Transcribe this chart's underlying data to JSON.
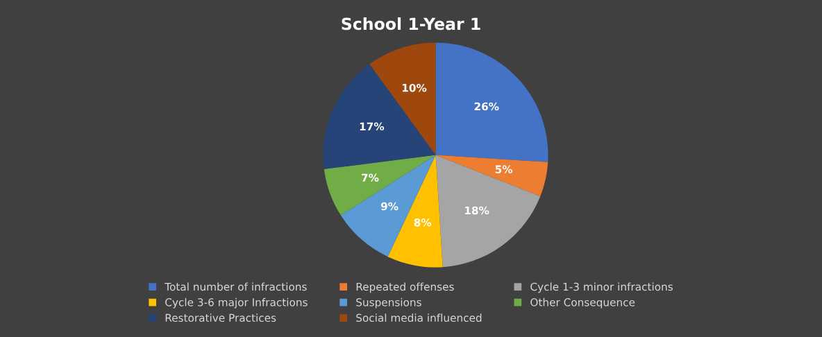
{
  "chart_data": {
    "type": "pie",
    "title": "School 1-Year 1",
    "categories": [
      "Total number of infractions",
      "Repeated offenses",
      "Cycle 1-3 minor infractions",
      "Cycle 3-6 major Infractions",
      "Suspensions",
      "Other Consequence",
      "Restorative Practices",
      "Social media influenced"
    ],
    "values": [
      26,
      5,
      18,
      8,
      9,
      7,
      17,
      10
    ],
    "value_labels": [
      "26%",
      "5%",
      "18%",
      "8%",
      "9%",
      "7%",
      "17%",
      "10%"
    ],
    "colors": [
      "#4472c4",
      "#ed7d31",
      "#a5a5a5",
      "#ffc000",
      "#5b9bd5",
      "#70ad47",
      "#264478",
      "#9e480e"
    ],
    "legend": "bottom"
  }
}
